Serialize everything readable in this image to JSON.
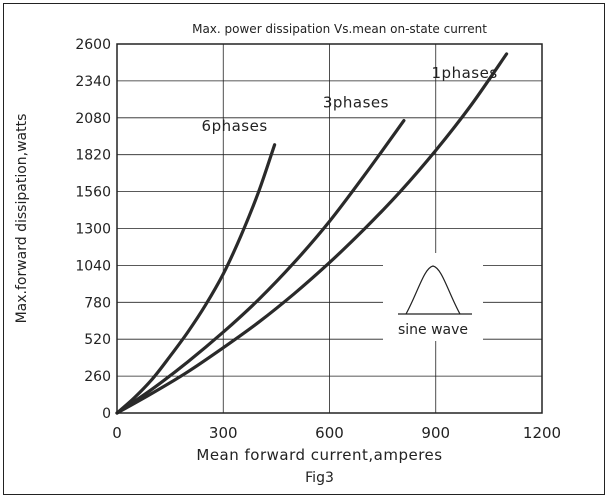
{
  "chart_data": {
    "type": "line",
    "title": "Max. power dissipation Vs.mean on-state current",
    "xlabel": "Mean forward current,amperes",
    "ylabel": "Max.forward dissipation,watts",
    "caption": "Fig3",
    "xlim": [
      0,
      1200
    ],
    "ylim": [
      0,
      2600
    ],
    "x_ticks": [
      "0",
      "300",
      "600",
      "900",
      "1200"
    ],
    "y_ticks": [
      "0",
      "260",
      "520",
      "780",
      "1040",
      "1300",
      "1560",
      "1820",
      "2080",
      "2340",
      "2600"
    ],
    "grid": true,
    "series": [
      {
        "name": "6phases",
        "x": [
          0,
          50,
          100,
          150,
          200,
          250,
          300,
          350,
          400,
          445
        ],
        "y": [
          0,
          110,
          240,
          400,
          570,
          760,
          980,
          1250,
          1560,
          1890
        ]
      },
      {
        "name": "3phases",
        "x": [
          0,
          100,
          200,
          300,
          400,
          500,
          600,
          700,
          810
        ],
        "y": [
          0,
          170,
          360,
          570,
          800,
          1060,
          1350,
          1680,
          2060
        ]
      },
      {
        "name": "1phases",
        "x": [
          0,
          100,
          200,
          300,
          400,
          500,
          600,
          700,
          800,
          900,
          1000,
          1100
        ],
        "y": [
          0,
          140,
          290,
          460,
          640,
          840,
          1060,
          1300,
          1560,
          1850,
          2170,
          2530
        ]
      }
    ],
    "inset_label": "sine wave"
  }
}
